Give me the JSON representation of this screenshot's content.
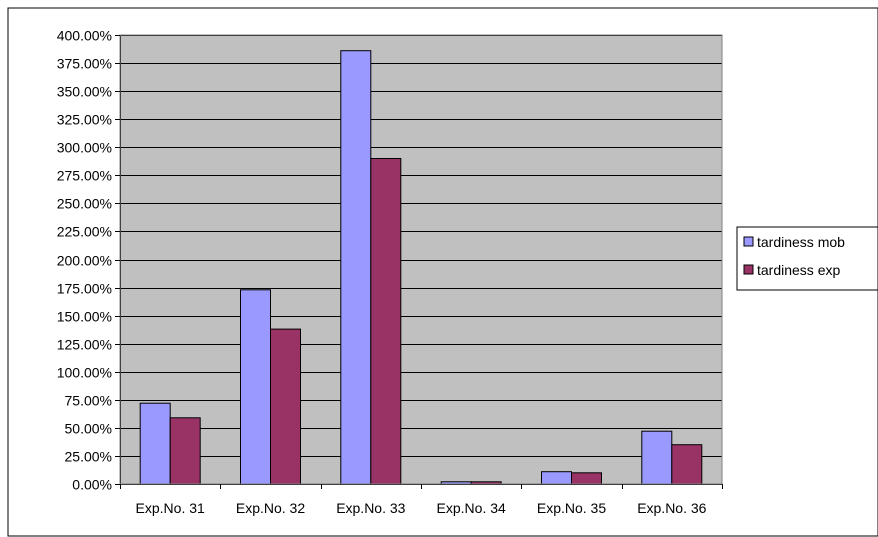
{
  "chart_data": {
    "type": "bar",
    "title": "",
    "xlabel": "",
    "ylabel": "",
    "categories": [
      "Exp.No. 31",
      "Exp.No. 32",
      "Exp.No. 33",
      "Exp.No. 34",
      "Exp.No. 35",
      "Exp.No. 36"
    ],
    "series": [
      {
        "name": "tardiness mob",
        "color": "#9999ff",
        "values": [
          72,
          173,
          386,
          2,
          11,
          47
        ]
      },
      {
        "name": "tardiness exp",
        "color": "#993366",
        "values": [
          59,
          138,
          290,
          2,
          10,
          35
        ]
      }
    ],
    "ylim": [
      0,
      400
    ],
    "ytick_step": 25,
    "ytick_format": "percent-2dp",
    "grid": true,
    "plot_background": "#c0c0c0",
    "legend_position": "right"
  }
}
